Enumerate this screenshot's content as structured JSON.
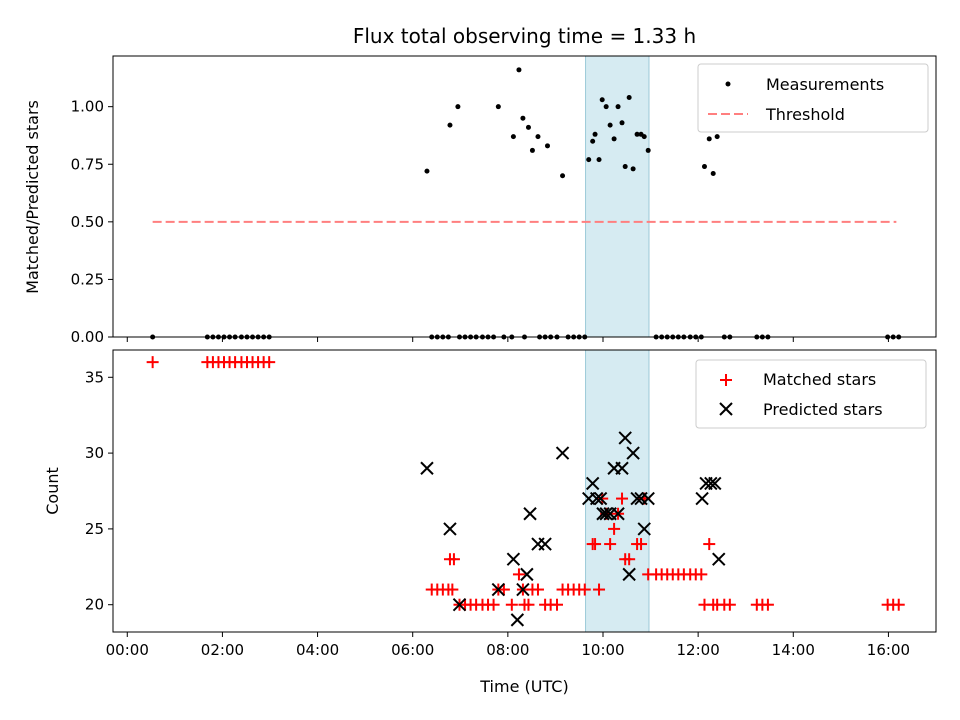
{
  "title": "Flux total observing time = 1.33 h",
  "colors": {
    "measurement": "#000000",
    "threshold": "#ff7f7f",
    "matched": "#ff0000",
    "predicted": "#000000",
    "band": "#add8e6"
  },
  "chart_data": [
    {
      "type": "scatter",
      "title": "Flux total observing time = 1.33 h",
      "xlabel": "",
      "ylabel": "Matched/Predicted stars",
      "xlim": [
        "00:00",
        "17:00"
      ],
      "ylim": [
        0,
        1.22
      ],
      "x_ticks": [
        "00:00",
        "02:00",
        "04:00",
        "06:00",
        "08:00",
        "10:00",
        "12:00",
        "14:00",
        "16:00"
      ],
      "y_ticks": [
        "0.00",
        "0.25",
        "0.50",
        "0.75",
        "1.00"
      ],
      "legend": [
        "Measurements",
        "Threshold"
      ],
      "legend_position": "top-right",
      "shaded_interval": [
        "09:38",
        "10:58"
      ],
      "threshold": {
        "y": 0.5,
        "x_range": [
          "00:32",
          "16:10"
        ]
      },
      "series": [
        {
          "name": "Measurements",
          "points": [
            [
              "00:32",
              0
            ],
            [
              "01:41",
              0
            ],
            [
              "01:48",
              0
            ],
            [
              "01:55",
              0
            ],
            [
              "02:02",
              0
            ],
            [
              "02:09",
              0
            ],
            [
              "02:16",
              0
            ],
            [
              "02:24",
              0
            ],
            [
              "02:31",
              0
            ],
            [
              "02:38",
              0
            ],
            [
              "02:45",
              0
            ],
            [
              "02:52",
              0
            ],
            [
              "02:59",
              0
            ],
            [
              "06:18",
              0.72
            ],
            [
              "06:24",
              0
            ],
            [
              "06:31",
              0
            ],
            [
              "06:38",
              0
            ],
            [
              "06:45",
              0
            ],
            [
              "06:47",
              0.92
            ],
            [
              "06:57",
              1.0
            ],
            [
              "06:59",
              0
            ],
            [
              "07:06",
              0
            ],
            [
              "07:13",
              0
            ],
            [
              "07:20",
              0
            ],
            [
              "07:28",
              0
            ],
            [
              "07:35",
              0
            ],
            [
              "07:42",
              0
            ],
            [
              "07:48",
              1.0
            ],
            [
              "07:55",
              0
            ],
            [
              "08:05",
              0
            ],
            [
              "08:07",
              0.87
            ],
            [
              "08:14",
              1.16
            ],
            [
              "08:19",
              0.95
            ],
            [
              "08:21",
              0
            ],
            [
              "08:26",
              0.91
            ],
            [
              "08:31",
              0.81
            ],
            [
              "08:38",
              0.87
            ],
            [
              "08:40",
              0
            ],
            [
              "08:47",
              0
            ],
            [
              "08:50",
              0.83
            ],
            [
              "08:54",
              0
            ],
            [
              "09:02",
              0
            ],
            [
              "09:09",
              0.7
            ],
            [
              "09:16",
              0
            ],
            [
              "09:23",
              0
            ],
            [
              "09:30",
              0
            ],
            [
              "09:37",
              0
            ],
            [
              "09:42",
              0.77
            ],
            [
              "09:47",
              0.85
            ],
            [
              "09:50",
              0.88
            ],
            [
              "09:55",
              0.77
            ],
            [
              "09:59",
              1.03
            ],
            [
              "10:04",
              1.0
            ],
            [
              "10:09",
              0.92
            ],
            [
              "10:14",
              0.86
            ],
            [
              "10:19",
              1.0
            ],
            [
              "10:24",
              0.93
            ],
            [
              "10:28",
              0.74
            ],
            [
              "10:33",
              1.04
            ],
            [
              "10:38",
              0.73
            ],
            [
              "10:43",
              0.88
            ],
            [
              "10:48",
              0.88
            ],
            [
              "10:52",
              0.87
            ],
            [
              "10:57",
              0.81
            ],
            [
              "11:07",
              0
            ],
            [
              "11:14",
              0
            ],
            [
              "11:21",
              0
            ],
            [
              "11:28",
              0
            ],
            [
              "11:35",
              0
            ],
            [
              "11:42",
              0
            ],
            [
              "11:50",
              0
            ],
            [
              "11:57",
              0
            ],
            [
              "12:04",
              0
            ],
            [
              "12:08",
              0.74
            ],
            [
              "12:14",
              0.86
            ],
            [
              "12:19",
              0.71
            ],
            [
              "12:24",
              0.87
            ],
            [
              "12:33",
              0
            ],
            [
              "12:40",
              0
            ],
            [
              "13:14",
              0
            ],
            [
              "13:21",
              0
            ],
            [
              "13:28",
              0
            ],
            [
              "15:59",
              0
            ],
            [
              "16:06",
              0
            ],
            [
              "16:13",
              0
            ]
          ]
        },
        {
          "name": "Threshold",
          "values": [
            0.5,
            0.5
          ]
        }
      ]
    },
    {
      "type": "scatter",
      "title": "",
      "xlabel": "Time (UTC)",
      "ylabel": "Count",
      "xlim": [
        "00:00",
        "17:00"
      ],
      "ylim": [
        18.2,
        36.8
      ],
      "x_ticks": [
        "00:00",
        "02:00",
        "04:00",
        "06:00",
        "08:00",
        "10:00",
        "12:00",
        "14:00",
        "16:00"
      ],
      "y_ticks": [
        "20",
        "25",
        "30",
        "35"
      ],
      "legend": [
        "Matched stars",
        "Predicted stars"
      ],
      "legend_position": "top-right",
      "shaded_interval": [
        "09:38",
        "10:58"
      ],
      "series": [
        {
          "name": "Matched stars",
          "points": [
            [
              "00:32",
              36
            ],
            [
              "01:41",
              36
            ],
            [
              "01:48",
              36
            ],
            [
              "01:55",
              36
            ],
            [
              "02:02",
              36
            ],
            [
              "02:09",
              36
            ],
            [
              "02:16",
              36
            ],
            [
              "02:24",
              36
            ],
            [
              "02:31",
              36
            ],
            [
              "02:38",
              36
            ],
            [
              "02:45",
              36
            ],
            [
              "02:52",
              36
            ],
            [
              "02:59",
              36
            ],
            [
              "06:24",
              21
            ],
            [
              "06:31",
              21
            ],
            [
              "06:38",
              21
            ],
            [
              "06:45",
              21
            ],
            [
              "06:50",
              21
            ],
            [
              "06:47",
              23
            ],
            [
              "06:52",
              23
            ],
            [
              "06:59",
              20
            ],
            [
              "07:06",
              20
            ],
            [
              "07:13",
              20
            ],
            [
              "07:20",
              20
            ],
            [
              "07:28",
              20
            ],
            [
              "07:35",
              20
            ],
            [
              "07:42",
              20
            ],
            [
              "07:48",
              21
            ],
            [
              "07:55",
              21
            ],
            [
              "08:05",
              20
            ],
            [
              "08:14",
              22
            ],
            [
              "08:19",
              21
            ],
            [
              "08:21",
              20
            ],
            [
              "08:26",
              20
            ],
            [
              "08:31",
              21
            ],
            [
              "08:38",
              21
            ],
            [
              "08:47",
              20
            ],
            [
              "08:54",
              20
            ],
            [
              "09:02",
              20
            ],
            [
              "09:09",
              21
            ],
            [
              "09:16",
              21
            ],
            [
              "09:23",
              21
            ],
            [
              "09:30",
              21
            ],
            [
              "09:37",
              21
            ],
            [
              "09:47",
              24
            ],
            [
              "09:50",
              24
            ],
            [
              "09:55",
              21
            ],
            [
              "09:59",
              27
            ],
            [
              "10:04",
              26
            ],
            [
              "10:09",
              24
            ],
            [
              "10:14",
              25
            ],
            [
              "10:19",
              26
            ],
            [
              "10:24",
              27
            ],
            [
              "10:28",
              23
            ],
            [
              "10:33",
              23
            ],
            [
              "10:43",
              24
            ],
            [
              "10:48",
              24
            ],
            [
              "10:52",
              27
            ],
            [
              "10:57",
              22
            ],
            [
              "11:07",
              22
            ],
            [
              "11:14",
              22
            ],
            [
              "11:21",
              22
            ],
            [
              "11:28",
              22
            ],
            [
              "11:35",
              22
            ],
            [
              "11:42",
              22
            ],
            [
              "11:50",
              22
            ],
            [
              "11:57",
              22
            ],
            [
              "12:04",
              22
            ],
            [
              "12:08",
              20
            ],
            [
              "12:14",
              24
            ],
            [
              "12:19",
              20
            ],
            [
              "12:24",
              20
            ],
            [
              "12:33",
              20
            ],
            [
              "12:40",
              20
            ],
            [
              "13:14",
              20
            ],
            [
              "13:21",
              20
            ],
            [
              "13:28",
              20
            ],
            [
              "15:59",
              20
            ],
            [
              "16:06",
              20
            ],
            [
              "16:13",
              20
            ]
          ]
        },
        {
          "name": "Predicted stars",
          "points": [
            [
              "06:18",
              29
            ],
            [
              "06:47",
              25
            ],
            [
              "06:59",
              20
            ],
            [
              "07:48",
              21
            ],
            [
              "08:07",
              23
            ],
            [
              "08:12",
              19
            ],
            [
              "08:19",
              21
            ],
            [
              "08:24",
              22
            ],
            [
              "08:28",
              26
            ],
            [
              "08:38",
              24
            ],
            [
              "08:47",
              24
            ],
            [
              "09:09",
              30
            ],
            [
              "09:42",
              27
            ],
            [
              "09:47",
              28
            ],
            [
              "09:52",
              27
            ],
            [
              "09:57",
              27
            ],
            [
              "10:00",
              26
            ],
            [
              "10:04",
              26
            ],
            [
              "10:09",
              26
            ],
            [
              "10:14",
              29
            ],
            [
              "10:19",
              26
            ],
            [
              "10:24",
              29
            ],
            [
              "10:28",
              31
            ],
            [
              "10:33",
              22
            ],
            [
              "10:38",
              30
            ],
            [
              "10:43",
              27
            ],
            [
              "10:48",
              27
            ],
            [
              "10:52",
              25
            ],
            [
              "10:57",
              27
            ],
            [
              "12:05",
              27
            ],
            [
              "12:10",
              28
            ],
            [
              "12:16",
              28
            ],
            [
              "12:21",
              28
            ],
            [
              "12:26",
              23
            ]
          ]
        }
      ]
    }
  ]
}
